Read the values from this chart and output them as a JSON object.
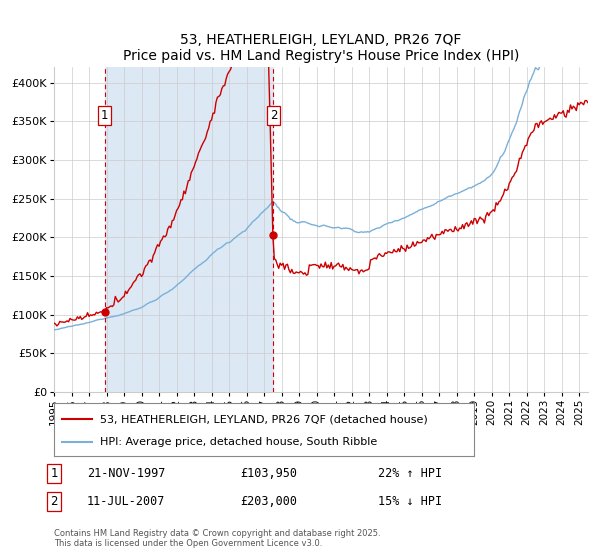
{
  "title_line1": "53, HEATHERLEIGH, LEYLAND, PR26 7QF",
  "title_line2": "Price paid vs. HM Land Registry's House Price Index (HPI)",
  "xlim_start": 1995.0,
  "xlim_end": 2025.5,
  "ylim_min": 0,
  "ylim_max": 420000,
  "yticks": [
    0,
    50000,
    100000,
    150000,
    200000,
    250000,
    300000,
    350000,
    400000
  ],
  "ytick_labels": [
    "£0",
    "£50K",
    "£100K",
    "£150K",
    "£200K",
    "£250K",
    "£300K",
    "£350K",
    "£400K"
  ],
  "purchase1_date": 1997.896,
  "purchase1_price": 103950,
  "purchase1_label": "1",
  "purchase2_date": 2007.535,
  "purchase2_price": 203000,
  "purchase2_label": "2",
  "shaded_color": "#dce9f5",
  "hpi_color": "#7ab0d8",
  "price_color": "#cc0000",
  "dashed_color": "#cc0000",
  "background_color": "#ffffff",
  "grid_color": "#cccccc",
  "legend_label_price": "53, HEATHERLEIGH, LEYLAND, PR26 7QF (detached house)",
  "legend_label_hpi": "HPI: Average price, detached house, South Ribble",
  "note1_label": "1",
  "note1_date": "21-NOV-1997",
  "note1_price": "£103,950",
  "note1_hpi": "22% ↑ HPI",
  "note2_label": "2",
  "note2_date": "11-JUL-2007",
  "note2_price": "£203,000",
  "note2_hpi": "15% ↓ HPI",
  "footer": "Contains HM Land Registry data © Crown copyright and database right 2025.\nThis data is licensed under the Open Government Licence v3.0.",
  "xtick_years": [
    1995,
    1996,
    1997,
    1998,
    1999,
    2000,
    2001,
    2002,
    2003,
    2004,
    2005,
    2006,
    2007,
    2008,
    2009,
    2010,
    2011,
    2012,
    2013,
    2014,
    2015,
    2016,
    2017,
    2018,
    2019,
    2020,
    2021,
    2022,
    2023,
    2024,
    2025
  ]
}
